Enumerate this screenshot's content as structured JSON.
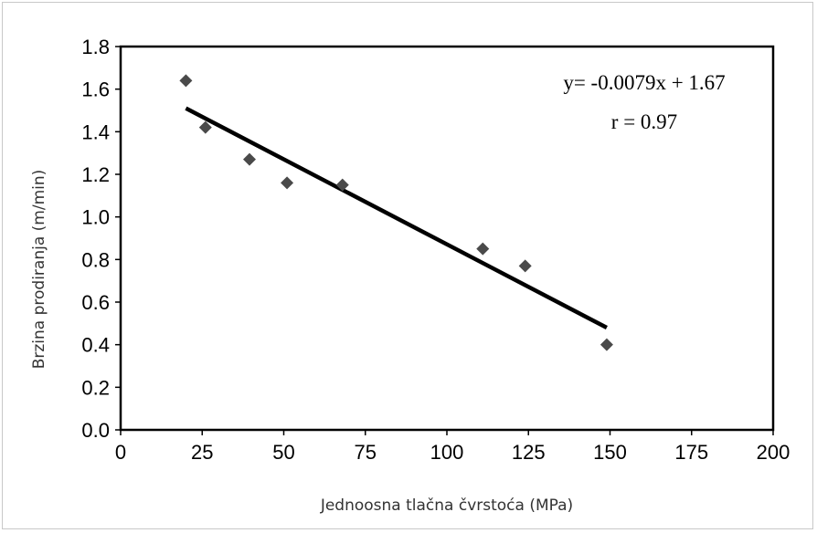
{
  "chart_data": {
    "type": "scatter",
    "xlabel": "Jednoosna tlačna čvrstoća (MPa)",
    "ylabel": "Brzina prodiranja (m/min)",
    "xlim": [
      0,
      200
    ],
    "ylim": [
      0.0,
      1.8
    ],
    "x_ticks": [
      "0",
      "25",
      "50",
      "75",
      "100",
      "125",
      "150",
      "175",
      "200"
    ],
    "y_ticks": [
      "0.0",
      "0.2",
      "0.4",
      "0.6",
      "0.8",
      "1.0",
      "1.2",
      "1.4",
      "1.6",
      "1.8"
    ],
    "grid": false,
    "marker": "diamond",
    "marker_color": "#4a4a4a",
    "points": [
      {
        "x": 20,
        "y": 1.64
      },
      {
        "x": 26,
        "y": 1.42
      },
      {
        "x": 39.5,
        "y": 1.27
      },
      {
        "x": 51,
        "y": 1.16
      },
      {
        "x": 68,
        "y": 1.15
      },
      {
        "x": 111,
        "y": 0.85
      },
      {
        "x": 124,
        "y": 0.77
      },
      {
        "x": 149,
        "y": 0.4
      }
    ],
    "trendline": {
      "x": [
        20,
        149
      ],
      "y": [
        1.51,
        0.48
      ],
      "color": "#000000"
    },
    "annotations": [
      "y= -0.0079x + 1.67",
      "r = 0.97"
    ]
  }
}
